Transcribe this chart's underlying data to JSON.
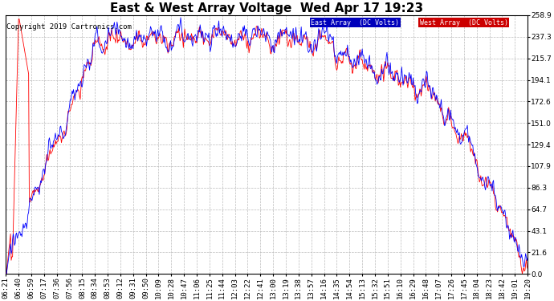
{
  "title": "East & West Array Voltage  Wed Apr 17 19:23",
  "copyright": "Copyright 2019 Cartronics.com",
  "legend_east": "East Array  (DC Volts)",
  "legend_west": "West Array  (DC Volts)",
  "east_color": "#0000ff",
  "west_color": "#ff0000",
  "legend_east_bg": "#0000bb",
  "legend_west_bg": "#cc0000",
  "bg_color": "#ffffff",
  "plot_bg_color": "#ffffff",
  "grid_color": "#bbbbbb",
  "yticks": [
    0.0,
    21.6,
    43.1,
    64.7,
    86.3,
    107.9,
    129.4,
    151.0,
    172.6,
    194.1,
    215.7,
    237.3,
    258.9
  ],
  "ymin": 0.0,
  "ymax": 258.9,
  "xtick_labels": [
    "06:21",
    "06:40",
    "06:59",
    "07:17",
    "07:36",
    "07:56",
    "08:15",
    "08:34",
    "08:53",
    "09:12",
    "09:31",
    "09:50",
    "10:09",
    "10:28",
    "10:47",
    "11:06",
    "11:25",
    "11:44",
    "12:03",
    "12:22",
    "12:41",
    "13:00",
    "13:19",
    "13:38",
    "13:57",
    "14:16",
    "14:35",
    "14:54",
    "15:13",
    "15:32",
    "15:51",
    "16:10",
    "16:29",
    "16:48",
    "17:07",
    "17:26",
    "17:45",
    "18:04",
    "18:23",
    "18:42",
    "19:01",
    "19:20"
  ],
  "title_fontsize": 11,
  "tick_fontsize": 6.5,
  "copyright_fontsize": 6.5
}
